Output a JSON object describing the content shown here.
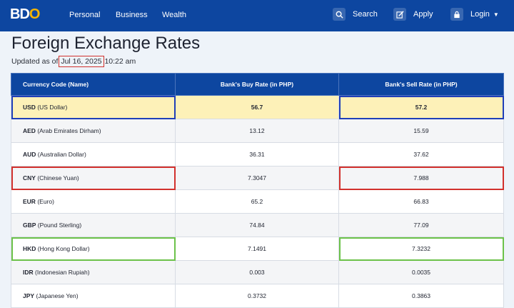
{
  "nav": {
    "logo_text_b": "BD",
    "logo_text_o": "O",
    "links": [
      "Personal",
      "Business",
      "Wealth"
    ],
    "search_label": "Search",
    "apply_label": "Apply",
    "login_label": "Login"
  },
  "page": {
    "title": "Foreign Exchange Rates",
    "updated_prefix": "Updated as of",
    "updated_date": "Jul 16, 2025",
    "updated_time": "10:22 am"
  },
  "table": {
    "headers": [
      "Currency Code (Name)",
      "Bank's Buy Rate (in PHP)",
      "Bank's Sell Rate (in PHP)"
    ],
    "rows": [
      {
        "code": "USD",
        "name": "(US Dollar)",
        "buy": "56.7",
        "sell": "57.2"
      },
      {
        "code": "AED",
        "name": "(Arab Emirates Dirham)",
        "buy": "13.12",
        "sell": "15.59"
      },
      {
        "code": "AUD",
        "name": "(Australian Dollar)",
        "buy": "36.31",
        "sell": "37.62"
      },
      {
        "code": "CNY",
        "name": "(Chinese Yuan)",
        "buy": "7.3047",
        "sell": "7.988"
      },
      {
        "code": "EUR",
        "name": "(Euro)",
        "buy": "65.2",
        "sell": "66.83"
      },
      {
        "code": "GBP",
        "name": "(Pound Sterling)",
        "buy": "74.84",
        "sell": "77.09"
      },
      {
        "code": "HKD",
        "name": "(Hong Kong Dollar)",
        "buy": "7.1491",
        "sell": "7.3232"
      },
      {
        "code": "IDR",
        "name": "(Indonesian Rupiah)",
        "buy": "0.003",
        "sell": "0.0035"
      },
      {
        "code": "JPY",
        "name": "(Japanese Yen)",
        "buy": "0.3732",
        "sell": "0.3863"
      }
    ]
  },
  "colors": {
    "nav_bg": "#0d46a0",
    "highlight_yellow": "#fdf1b8",
    "box_blue": "#1f3fb8",
    "box_red": "#d2312d",
    "box_green": "#6cc24a"
  }
}
